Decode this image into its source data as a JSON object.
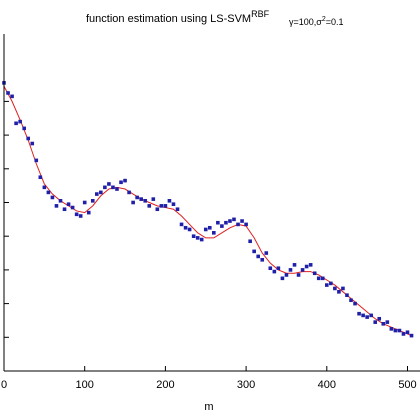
{
  "chart_data": {
    "type": "scatter",
    "title": "function estimation using  LS-SVM",
    "title_superscript": "RBF",
    "title_subscript_parts": [
      "γ=100,σ",
      "2",
      "=0.1"
    ],
    "xlabel": "m",
    "ylabel": "",
    "xlim": [
      0,
      580
    ],
    "ylim": [
      0.0,
      1.0
    ],
    "x_ticks": [
      0,
      100,
      200,
      300,
      400,
      500
    ],
    "x_tick_labels": [
      "0",
      "100",
      "200",
      "300",
      "400",
      "500"
    ],
    "y_ticks": [
      0.1,
      0.2,
      0.3,
      0.4,
      0.5,
      0.6,
      0.7,
      0.8
    ],
    "grid": false,
    "series": [
      {
        "marker": "point",
        "color": "#1f1fa8",
        "x": [
          0,
          5,
          10,
          15,
          20,
          25,
          30,
          35,
          40,
          45,
          50,
          55,
          60,
          65,
          70,
          75,
          80,
          85,
          90,
          95,
          100,
          105,
          110,
          115,
          120,
          125,
          130,
          135,
          140,
          145,
          150,
          155,
          160,
          165,
          170,
          175,
          180,
          185,
          190,
          195,
          200,
          205,
          210,
          215,
          220,
          225,
          230,
          235,
          240,
          245,
          250,
          255,
          260,
          265,
          270,
          275,
          280,
          285,
          290,
          295,
          300,
          305,
          310,
          315,
          320,
          325,
          330,
          335,
          340,
          345,
          350,
          355,
          360,
          365,
          370,
          375,
          380,
          385,
          390,
          395,
          400,
          405,
          410,
          415,
          420,
          425,
          430,
          435,
          440,
          445,
          450,
          455,
          460,
          465,
          470,
          475,
          480,
          485,
          490,
          495,
          500,
          505
        ],
        "y": [
          0.855,
          0.825,
          0.815,
          0.735,
          0.74,
          0.72,
          0.69,
          0.675,
          0.625,
          0.575,
          0.545,
          0.53,
          0.515,
          0.49,
          0.505,
          0.48,
          0.495,
          0.485,
          0.465,
          0.46,
          0.5,
          0.47,
          0.505,
          0.525,
          0.53,
          0.545,
          0.555,
          0.545,
          0.54,
          0.56,
          0.565,
          0.53,
          0.5,
          0.515,
          0.51,
          0.505,
          0.49,
          0.51,
          0.48,
          0.49,
          0.49,
          0.505,
          0.495,
          0.48,
          0.435,
          0.425,
          0.42,
          0.4,
          0.395,
          0.39,
          0.42,
          0.425,
          0.41,
          0.44,
          0.43,
          0.44,
          0.445,
          0.45,
          0.435,
          0.445,
          0.435,
          0.385,
          0.355,
          0.34,
          0.33,
          0.35,
          0.305,
          0.295,
          0.305,
          0.275,
          0.285,
          0.3,
          0.315,
          0.285,
          0.3,
          0.31,
          0.315,
          0.29,
          0.275,
          0.275,
          0.255,
          0.26,
          0.245,
          0.235,
          0.245,
          0.225,
          0.21,
          0.2,
          0.17,
          0.165,
          0.16,
          0.165,
          0.145,
          0.155,
          0.14,
          0.145,
          0.125,
          0.12,
          0.12,
          0.11,
          0.115,
          0.105
        ]
      },
      {
        "marker": "line",
        "color": "#e02020",
        "x": [
          0,
          10,
          20,
          30,
          40,
          50,
          60,
          70,
          80,
          90,
          100,
          110,
          120,
          130,
          140,
          150,
          160,
          170,
          180,
          190,
          200,
          210,
          220,
          230,
          240,
          250,
          260,
          270,
          280,
          290,
          300,
          310,
          320,
          330,
          340,
          350,
          360,
          370,
          380,
          390,
          400,
          410,
          420,
          430,
          440,
          450,
          460,
          470,
          480,
          490,
          500,
          505
        ],
        "y": [
          0.845,
          0.8,
          0.745,
          0.685,
          0.615,
          0.555,
          0.525,
          0.505,
          0.49,
          0.475,
          0.47,
          0.49,
          0.52,
          0.54,
          0.545,
          0.54,
          0.525,
          0.51,
          0.5,
          0.49,
          0.485,
          0.48,
          0.46,
          0.435,
          0.41,
          0.395,
          0.395,
          0.41,
          0.425,
          0.435,
          0.43,
          0.395,
          0.35,
          0.32,
          0.3,
          0.29,
          0.29,
          0.295,
          0.295,
          0.285,
          0.27,
          0.255,
          0.235,
          0.215,
          0.195,
          0.175,
          0.155,
          0.14,
          0.13,
          0.12,
          0.11,
          0.105
        ]
      }
    ]
  }
}
